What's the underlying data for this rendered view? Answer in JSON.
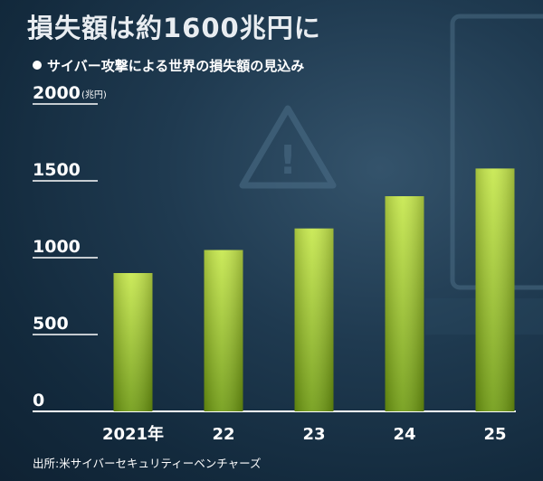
{
  "title": "損失額は約1600兆円に",
  "subtitle": "サイバー攻撃による世界の損失額の見込み",
  "source": "出所:米サイバーセキュリティーベンチャーズ",
  "colors": {
    "background": "#1a3347",
    "bar_top": "#c6e84a",
    "bar_bottom": "#6e9a10",
    "text": "#ffffff"
  },
  "chart_data": {
    "type": "bar",
    "title": "損失額は約1600兆円に",
    "subtitle": "サイバー攻撃による世界の損失額の見込み",
    "unit": "(兆円)",
    "categories": [
      "2021年",
      "22",
      "23",
      "24",
      "25"
    ],
    "values": [
      900,
      1050,
      1190,
      1400,
      1580
    ],
    "ylim": [
      0,
      2000
    ],
    "yticks": [
      0,
      500,
      1000,
      1500,
      2000
    ],
    "grid": true,
    "legend": "none"
  }
}
